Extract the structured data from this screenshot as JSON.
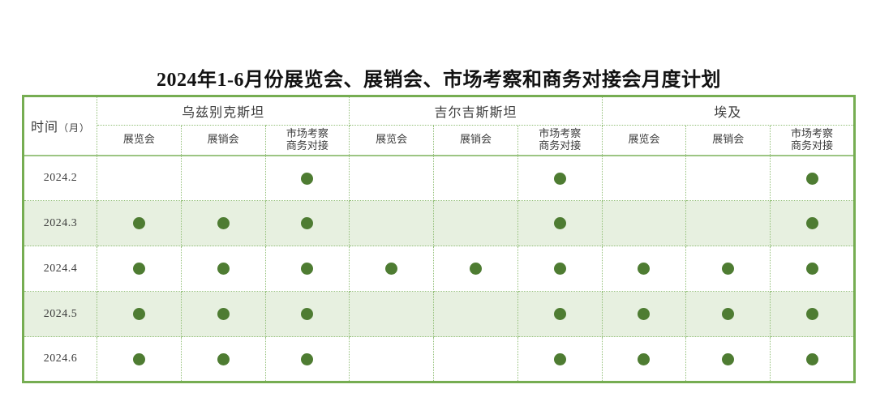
{
  "title": "2024年1-6月份展览会、展销会、市场考察和商务对接会月度计划",
  "table": {
    "time_header_main": "时间",
    "time_header_paren": "（月）",
    "groups": [
      {
        "country": "乌兹别克斯坦",
        "columns": [
          [
            "展览会"
          ],
          [
            "展销会"
          ],
          [
            "市场考察",
            "商务对接"
          ]
        ]
      },
      {
        "country": "吉尔吉斯斯坦",
        "columns": [
          [
            "展览会"
          ],
          [
            "展销会"
          ],
          [
            "市场考察",
            "商务对接"
          ]
        ]
      },
      {
        "country": "埃及",
        "columns": [
          [
            "展览会"
          ],
          [
            "展销会"
          ],
          [
            "市场考察",
            "商务对接"
          ]
        ]
      }
    ],
    "rows": [
      {
        "label": "2024.2",
        "cells": [
          0,
          0,
          1,
          0,
          0,
          1,
          0,
          0,
          1
        ]
      },
      {
        "label": "2024.3",
        "cells": [
          1,
          1,
          1,
          0,
          0,
          1,
          0,
          0,
          1
        ]
      },
      {
        "label": "2024.4",
        "cells": [
          1,
          1,
          1,
          1,
          1,
          1,
          1,
          1,
          1
        ]
      },
      {
        "label": "2024.5",
        "cells": [
          1,
          1,
          1,
          0,
          0,
          1,
          1,
          1,
          1
        ]
      },
      {
        "label": "2024.6",
        "cells": [
          1,
          1,
          1,
          0,
          0,
          1,
          1,
          1,
          1
        ]
      }
    ]
  },
  "icons": {
    "scheduled_marker": "filled-circle"
  },
  "colors": {
    "border_green": "#76ad52",
    "grid_green": "#94c07a",
    "sep_green": "#9cc583",
    "dot_green": "#4e7c32",
    "alt_row_bg": "#e7f0e0",
    "text_color": "#3c3c3c",
    "title_color": "#121212"
  }
}
